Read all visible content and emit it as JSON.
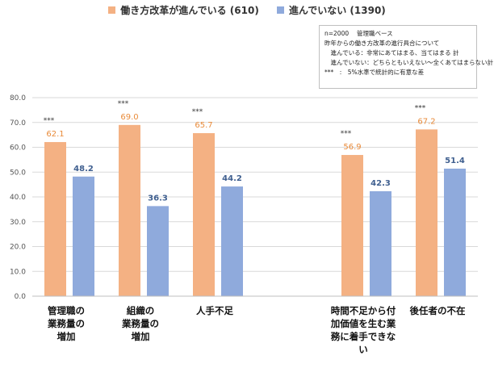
{
  "chart_data": {
    "type": "bar",
    "categories": [
      [
        "管理職の",
        "業務量の",
        "増加"
      ],
      [
        "組織の",
        "業務量の",
        "増加"
      ],
      [
        "人手不足"
      ],
      [
        "時間不足から付",
        "加価値を生む業",
        "務に着手できな",
        "い"
      ],
      [
        "後任者の不在"
      ]
    ],
    "category_gap_after": [
      false,
      false,
      true,
      false,
      false
    ],
    "series": [
      {
        "name": "働き方改革が進んでいる (610)",
        "color": "#F4B183",
        "values": [
          62.1,
          69.0,
          65.7,
          56.9,
          67.2
        ],
        "labels": [
          "62.1",
          "69.0",
          "65.7",
          "56.9",
          "67.2"
        ]
      },
      {
        "name": "進んでいない (1390)",
        "color": "#8FAADC",
        "values": [
          48.2,
          36.3,
          44.2,
          42.3,
          51.4
        ],
        "labels": [
          "48.2",
          "36.3",
          "44.2",
          "42.3",
          "51.4"
        ]
      }
    ],
    "significance": [
      "***",
      "***",
      "***",
      "***",
      "***"
    ],
    "ylim": [
      0,
      80
    ],
    "yticks": [
      "0.0",
      "10.0",
      "20.0",
      "30.0",
      "40.0",
      "50.0",
      "60.0",
      "70.0",
      "80.0"
    ],
    "grid": true,
    "legend_position": "top-center"
  },
  "notes": [
    "n=2000　 管理職ベース",
    "昨年からの働き方改革の進行具合について",
    "　進んでいる：非常にあてはまる、当てはまる 計",
    "　進んでいない：どちらともいえない～全くあてはまらない計",
    "***　:　5%水準で統計的に有意な差"
  ]
}
